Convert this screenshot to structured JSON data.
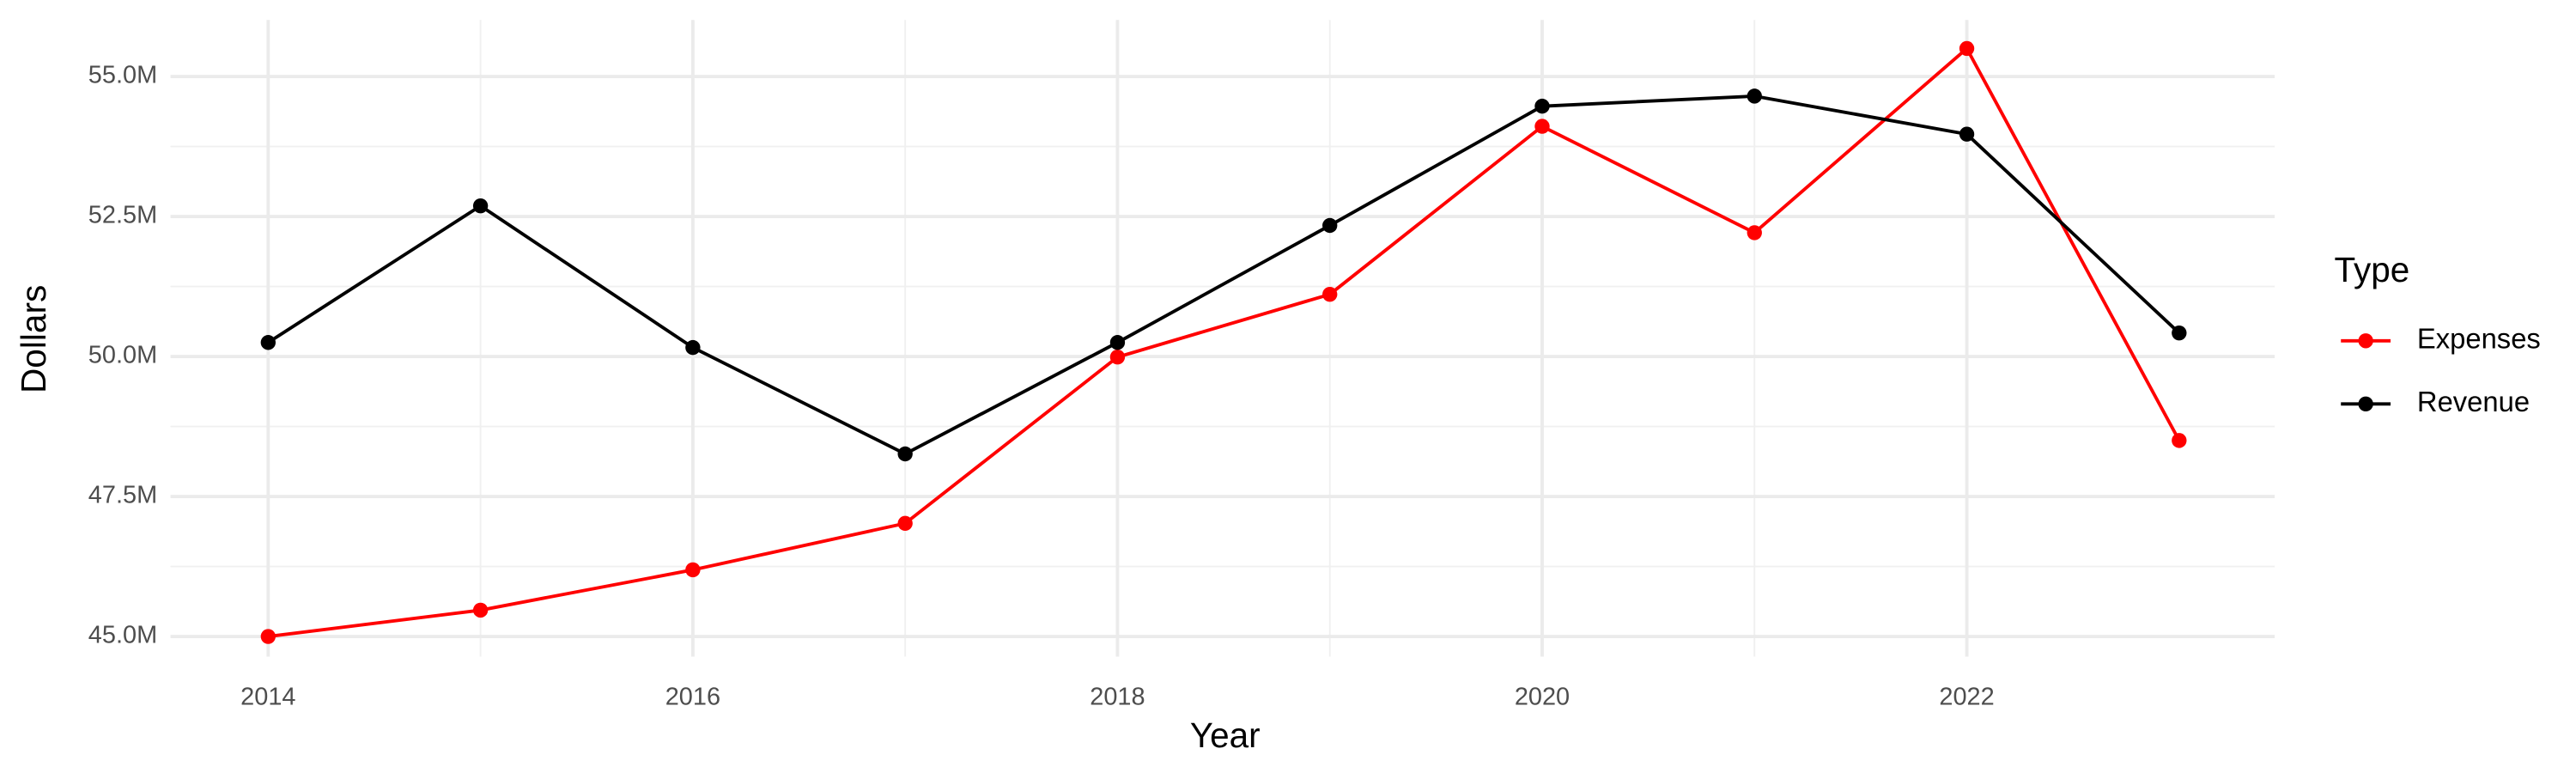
{
  "chart_data": {
    "type": "line",
    "x_label": "Year",
    "y_label": "Dollars",
    "legend_title": "Type",
    "x": [
      2014,
      2015,
      2016,
      2017,
      2018,
      2019,
      2020,
      2021,
      2022,
      2023
    ],
    "series": [
      {
        "name": "Expenses",
        "color": "#ff0000",
        "values": [
          45000000,
          45470000,
          46190000,
          47020000,
          49990000,
          51110000,
          54110000,
          52210000,
          55500000,
          48500000
        ]
      },
      {
        "name": "Revenue",
        "color": "#000000",
        "values": [
          50250000,
          52690000,
          50160000,
          48260000,
          50250000,
          52340000,
          54470000,
          54650000,
          53970000,
          50420000
        ]
      }
    ],
    "xlim": [
      2013.54,
      2023.45
    ],
    "xticks": [
      2014,
      2016,
      2018,
      2020,
      2022
    ],
    "ylim": [
      44640000,
      56010000
    ],
    "yticks": [
      {
        "value": 45000000,
        "label": "45.0M"
      },
      {
        "value": 47500000,
        "label": "47.5M"
      },
      {
        "value": 50000000,
        "label": "50.0M"
      },
      {
        "value": 52500000,
        "label": "52.5M"
      },
      {
        "value": 55000000,
        "label": "55.0M"
      }
    ],
    "grid": true,
    "legend": "right"
  }
}
